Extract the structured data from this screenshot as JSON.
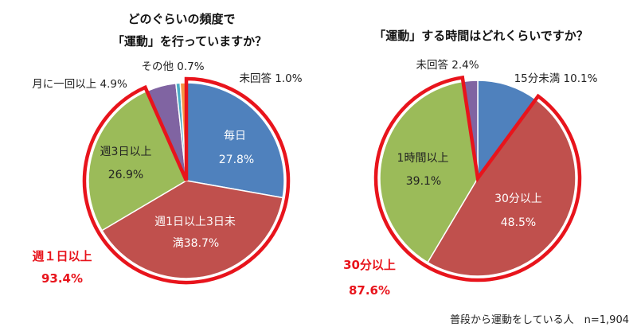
{
  "chart_data": [
    {
      "type": "pie",
      "title_lines": [
        "どのぐらいの頻度で",
        "「運動」を行っていますか？"
      ],
      "slices": [
        {
          "label_lines": [
            "毎日",
            "27.8%"
          ],
          "value": 27.8,
          "color": "#4f81bd"
        },
        {
          "label_lines": [
            "週1日以上3日未",
            "満38.7%"
          ],
          "value": 38.7,
          "color": "#c0504d"
        },
        {
          "label_lines": [
            "週3日以上",
            "26.9%"
          ],
          "value": 26.9,
          "color": "#9bbb59"
        },
        {
          "label_lines": [
            "月に一回以上 4.9%"
          ],
          "value": 4.9,
          "color": "#8064a2"
        },
        {
          "label_lines": [
            "その他 0.7%"
          ],
          "value": 0.7,
          "color": "#4bacc6"
        },
        {
          "label_lines": [
            "未回答 1.0%"
          ],
          "value": 1.0,
          "color": "#f79646"
        }
      ],
      "highlight": {
        "lines": [
          "週１日以上",
          "93.4%"
        ],
        "color": "#e8141c"
      }
    },
    {
      "type": "pie",
      "title_lines": [
        "「運動」する時間はどれくらいですか？"
      ],
      "slices": [
        {
          "label_lines": [
            "15分未満 10.1%"
          ],
          "value": 10.1,
          "color": "#4f81bd"
        },
        {
          "label_lines": [
            "30分以上",
            "48.5%"
          ],
          "value": 48.5,
          "color": "#c0504d"
        },
        {
          "label_lines": [
            "1時間以上",
            "39.1%"
          ],
          "value": 39.1,
          "color": "#9bbb59"
        },
        {
          "label_lines": [
            "未回答 2.4%"
          ],
          "value": 2.4,
          "color": "#8064a2"
        }
      ],
      "highlight": {
        "lines": [
          "30分以上",
          "87.6%"
        ],
        "color": "#e8141c"
      }
    }
  ],
  "note": "普段から運動をしている人　n=1,904"
}
